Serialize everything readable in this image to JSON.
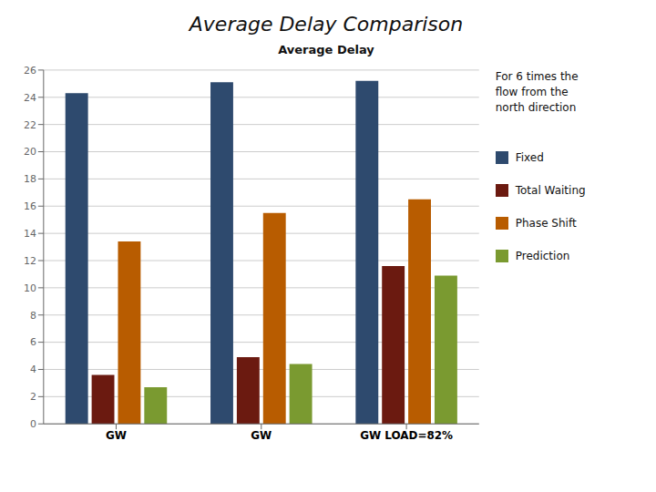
{
  "chart_data": {
    "type": "bar",
    "title": "Average Delay Comparison",
    "subtitle": "Average Delay",
    "annotation": "For 6 times the\nflow from the\nnorth direction",
    "categories": [
      "GW",
      "GW",
      "GW LOAD=82%"
    ],
    "series": [
      {
        "name": "Fixed",
        "color": "#2e4a6e",
        "values": [
          24.3,
          25.1,
          25.2
        ]
      },
      {
        "name": "Total Waiting",
        "color": "#6b1a10",
        "values": [
          3.6,
          4.9,
          11.6
        ]
      },
      {
        "name": "Phase Shift",
        "color": "#b85c00",
        "values": [
          13.4,
          15.5,
          16.5
        ]
      },
      {
        "name": "Prediction",
        "color": "#7a9a30",
        "values": [
          2.7,
          4.4,
          10.9
        ]
      }
    ],
    "ylim": [
      0,
      26
    ],
    "yticks": [
      0,
      2,
      4,
      6,
      8,
      10,
      12,
      14,
      16,
      18,
      20,
      22,
      24,
      26
    ],
    "grid": true,
    "legend": "right"
  }
}
